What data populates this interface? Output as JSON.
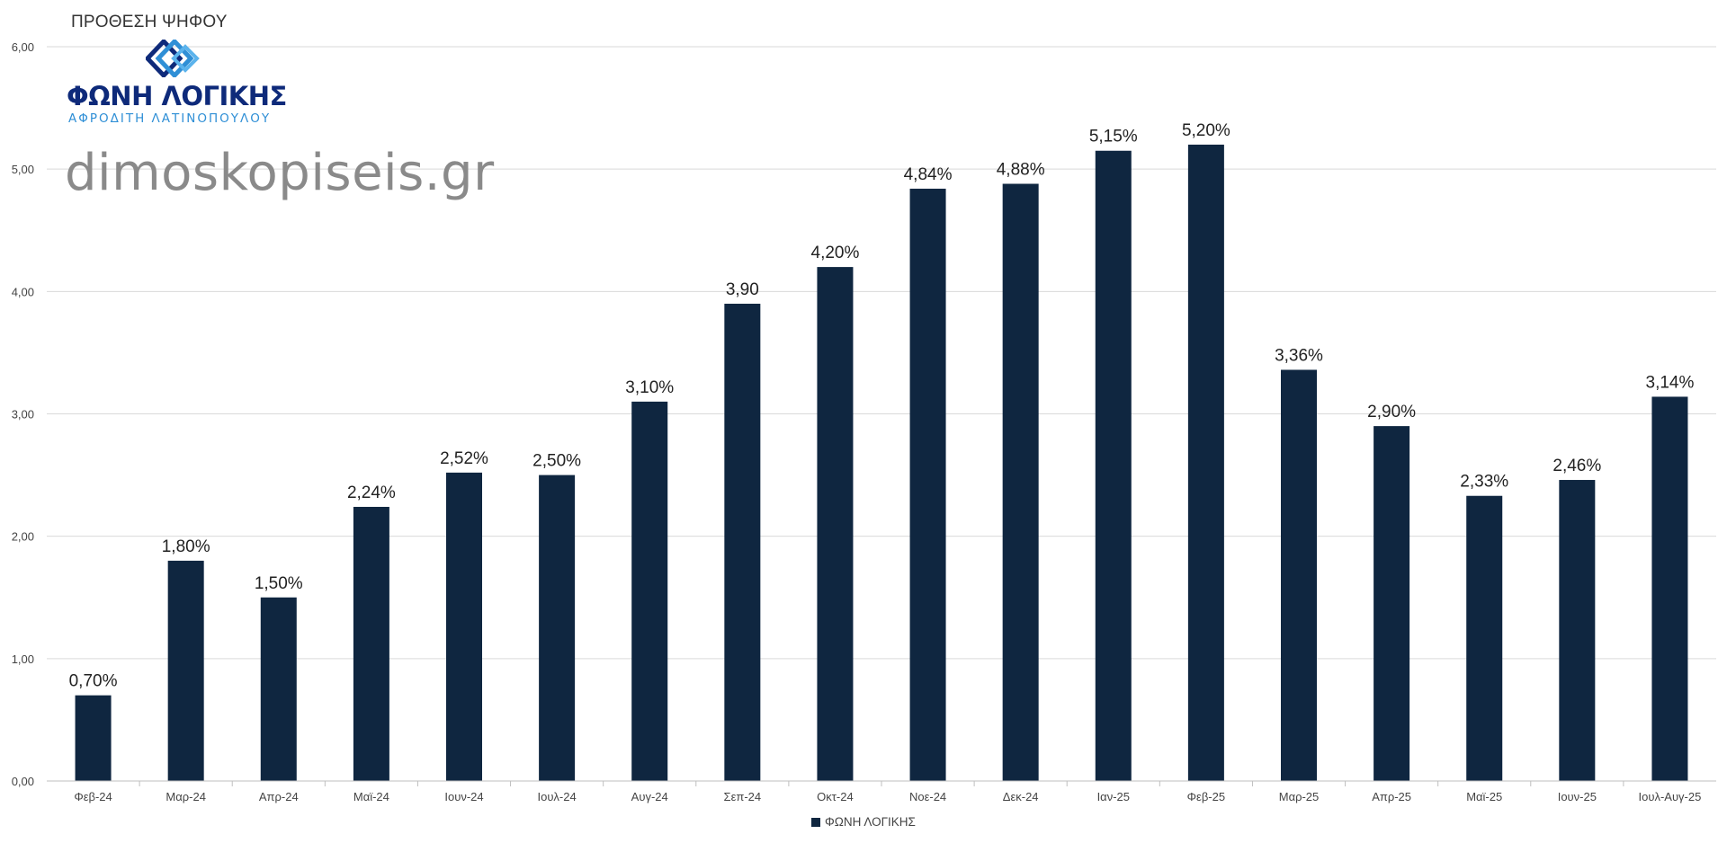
{
  "header": {
    "title": "ΠΡΟΘΕΣΗ ΨΗΦΟΥ"
  },
  "logo": {
    "name": "ΦΩΝΗ ΛΟΓΙΚΗΣ",
    "subtitle": "ΑΦΡΟΔΙΤΗ ΛΑΤΙΝΟΠΟΥΛΟΥ",
    "primary_color": "#0e2a7a",
    "accent_color": "#2f8fd6"
  },
  "watermark": {
    "text": "dimoskopiseis.gr"
  },
  "chart_data": {
    "type": "bar",
    "title": "ΠΡΟΘΕΣΗ ΨΗΦΟΥ",
    "xlabel": "",
    "ylabel": "",
    "ylim": [
      0,
      6
    ],
    "yticks": [
      "0,00",
      "1,00",
      "2,00",
      "3,00",
      "4,00",
      "5,00",
      "6,00"
    ],
    "yticks_values": [
      0,
      1,
      2,
      3,
      4,
      5,
      6
    ],
    "grid": true,
    "legend_position": "bottom",
    "bar_color": "#0f2640",
    "categories": [
      "Φεβ-24",
      "Μαρ-24",
      "Απρ-24",
      "Μαϊ-24",
      "Ιουν-24",
      "Ιουλ-24",
      "Αυγ-24",
      "Σεπ-24",
      "Οκτ-24",
      "Νοε-24",
      "Δεκ-24",
      "Ιαν-25",
      "Φεβ-25",
      "Μαρ-25",
      "Απρ-25",
      "Μαϊ-25",
      "Ιουν-25",
      "Ιουλ-Αυγ-25"
    ],
    "series": [
      {
        "name": "ΦΩΝΗ ΛΟΓΙΚΗΣ",
        "values": [
          0.7,
          1.8,
          1.5,
          2.24,
          2.52,
          2.5,
          3.1,
          3.9,
          4.2,
          4.84,
          4.88,
          5.15,
          5.2,
          3.36,
          2.9,
          2.33,
          2.46,
          3.14
        ],
        "labels": [
          "0,70%",
          "1,80%",
          "1,50%",
          "2,24%",
          "2,52%",
          "2,50%",
          "3,10%",
          "3,90",
          "4,20%",
          "4,84%",
          "4,88%",
          "5,15%",
          "5,20%",
          "3,36%",
          "2,90%",
          "2,33%",
          "2,46%",
          "3,14%"
        ]
      }
    ]
  }
}
